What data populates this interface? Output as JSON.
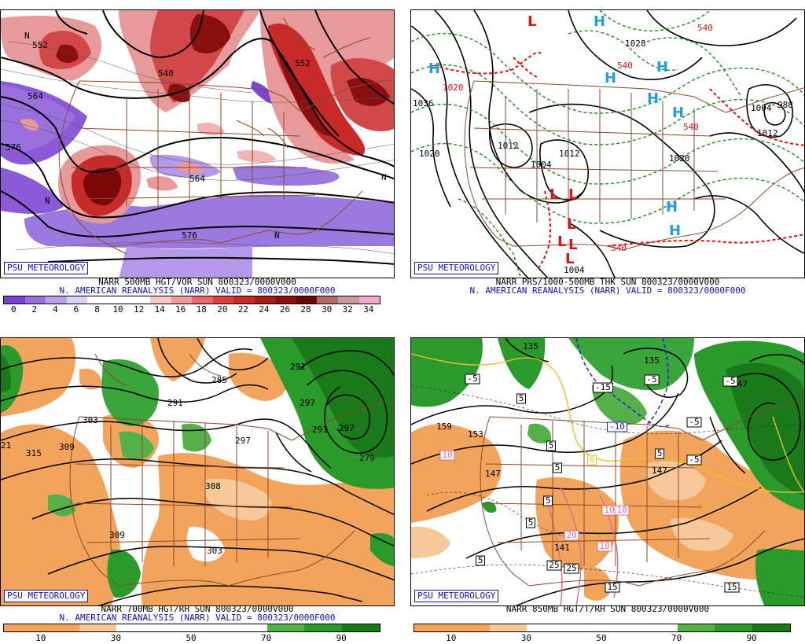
{
  "credit": "PSU METEOROLOGY",
  "panels": [
    {
      "title": "NARR 500MB HGT/VOR SUN 800323/0000V000",
      "subtitle": "N. AMERICAN REANALYSIS (NARR) VALID = 800323/0000F000",
      "colorbar_ticks": [
        "0",
        "2",
        "4",
        "6",
        "8",
        "10",
        "12",
        "14",
        "16",
        "18",
        "20",
        "22",
        "24",
        "26",
        "28",
        "30",
        "32",
        "34"
      ],
      "colorbar_colors": [
        "#7a3fd6",
        "#9a6fe0",
        "#b9a0ea",
        "#d9d2f5",
        "#ffffff",
        "#ffffff",
        "#ffffff",
        "#f7c8c8",
        "#f09a9a",
        "#e86a6a",
        "#de3f3f",
        "#c82a2a",
        "#a81c1c",
        "#8a0f0f",
        "#6a0808",
        "#b06a6a",
        "#c79a9a",
        "#f2a8c8"
      ],
      "contour_labels": [
        "552",
        "540",
        "552",
        "564",
        "576",
        "576",
        "564",
        "N",
        "N",
        "N",
        "N"
      ]
    },
    {
      "title": "NARR PRS/1000-500MB THK SUN 800323/0000V000",
      "subtitle": "N. AMERICAN REANALYSIS (NARR) VALID = 800323/0000F000",
      "pressure_labels": [
        "1020",
        "1012",
        "1004",
        "1012",
        "1020",
        "1004",
        "1020",
        "1028",
        "1004",
        "988",
        "1012",
        "1036",
        "540",
        "540",
        "540",
        "540"
      ],
      "highs": [
        "H",
        "H",
        "H",
        "H",
        "H",
        "H",
        "H",
        "H"
      ],
      "lows": [
        "L",
        "L",
        "L",
        "L",
        "L",
        "L",
        "L"
      ]
    },
    {
      "title": "NARR 700MB HGT/RH SUN 800323/0000V000",
      "subtitle": "N. AMERICAN REANALYSIS (NARR) VALID = 800323/0000F000",
      "colorbar_ticks": [
        "10",
        "30",
        "50",
        "70",
        "90"
      ],
      "colorbar_colors": [
        "#f2a35c",
        "#f2a35c",
        "#f7c99a",
        "#ffffff",
        "#ffffff",
        "#ffffff",
        "#ffffff",
        "#56b04a",
        "#2a9a2a",
        "#1a7a1a"
      ],
      "contour_labels": [
        "285",
        "291",
        "303",
        "309",
        "315",
        "21",
        "297",
        "308",
        "297",
        "279",
        "291",
        "291",
        "303",
        "309",
        "297"
      ]
    },
    {
      "title": "NARR 850MB HGT/T/RH SUN 800323/0000V000",
      "colorbar_ticks": [
        "10",
        "30",
        "50",
        "70",
        "90"
      ],
      "colorbar_colors": [
        "#f2a35c",
        "#f2a35c",
        "#f7c99a",
        "#ffffff",
        "#ffffff",
        "#ffffff",
        "#ffffff",
        "#56b04a",
        "#2a9a2a",
        "#1a7a1a"
      ],
      "contour_labels": [
        "135",
        "135",
        "147",
        "147",
        "159",
        "153",
        "147",
        "141"
      ],
      "temp_labels": [
        "-5",
        "-5",
        "-15",
        "-10",
        "-5",
        "-5",
        "0",
        "5",
        "5",
        "5",
        "5",
        "5",
        "-5",
        "10",
        "10",
        "10",
        "20",
        "25",
        "25",
        "10",
        "15",
        "15",
        "5",
        "5"
      ]
    }
  ]
}
